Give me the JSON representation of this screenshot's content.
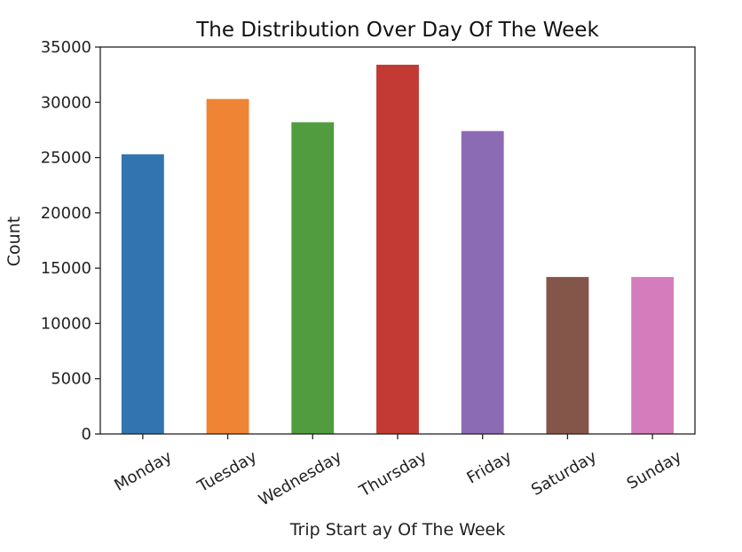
{
  "chart_data": {
    "type": "bar",
    "title": "The Distribution Over Day Of The Week",
    "xlabel": "Trip Start ay Of The Week",
    "ylabel": "Count",
    "categories": [
      "Monday",
      "Tuesday",
      "Wednesday",
      "Thursday",
      "Friday",
      "Saturday",
      "Sunday"
    ],
    "values": [
      25300,
      30300,
      28200,
      33400,
      27400,
      14200,
      14200
    ],
    "colors": [
      "#3274b0",
      "#ee8434",
      "#519c3e",
      "#c23a33",
      "#8c6bb5",
      "#845649",
      "#d57cbd"
    ],
    "ylim": [
      0,
      35000
    ],
    "yticks": [
      0,
      5000,
      10000,
      15000,
      20000,
      25000,
      30000,
      35000
    ],
    "ytick_labels": [
      "0",
      "5000",
      "10000",
      "15000",
      "20000",
      "25000",
      "30000",
      "35000"
    ],
    "grid": false,
    "legend": "none"
  }
}
